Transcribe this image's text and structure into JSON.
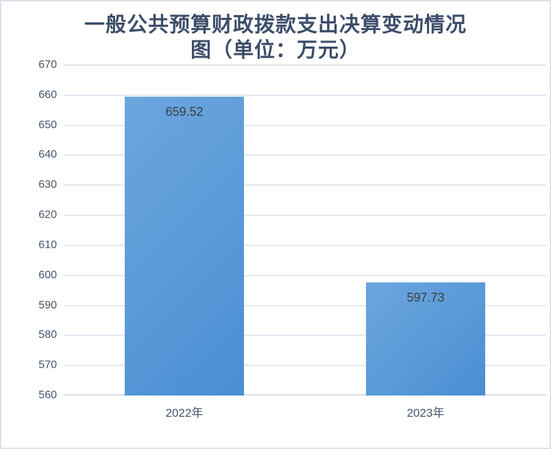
{
  "title": {
    "text": "一般公共预算财政拨款支出决算变动情况图（单位：万元）",
    "lines": [
      "一般公共预算财政拨款支出决算变动情况",
      "图（单位：万元）"
    ],
    "color": "#3c4d68"
  },
  "chart_data": {
    "type": "bar",
    "categories": [
      "2022年",
      "2023年"
    ],
    "values": [
      659.52,
      597.73
    ],
    "data_labels": [
      "659.52",
      "597.73"
    ],
    "title": "一般公共预算财政拨款支出决算变动情况图（单位：万元）",
    "xlabel": "",
    "ylabel": "",
    "ylim": [
      560,
      670
    ],
    "ytick_step": 10,
    "yticks": [
      "560",
      "570",
      "580",
      "590",
      "600",
      "610",
      "620",
      "630",
      "640",
      "650",
      "660",
      "670"
    ],
    "grid": true,
    "legend": "none"
  },
  "colors": {
    "bar_gradient_top_left": "#6ca6df",
    "bar_gradient_bottom_right": "#4a8fd2",
    "axis_tick_label": "#44546a",
    "data_label": "#3f3f3f",
    "gridline": "#e2e7ef",
    "axis_line": "#d8dee7",
    "frame_border": "#dce2ea",
    "background": "#ffffff"
  }
}
